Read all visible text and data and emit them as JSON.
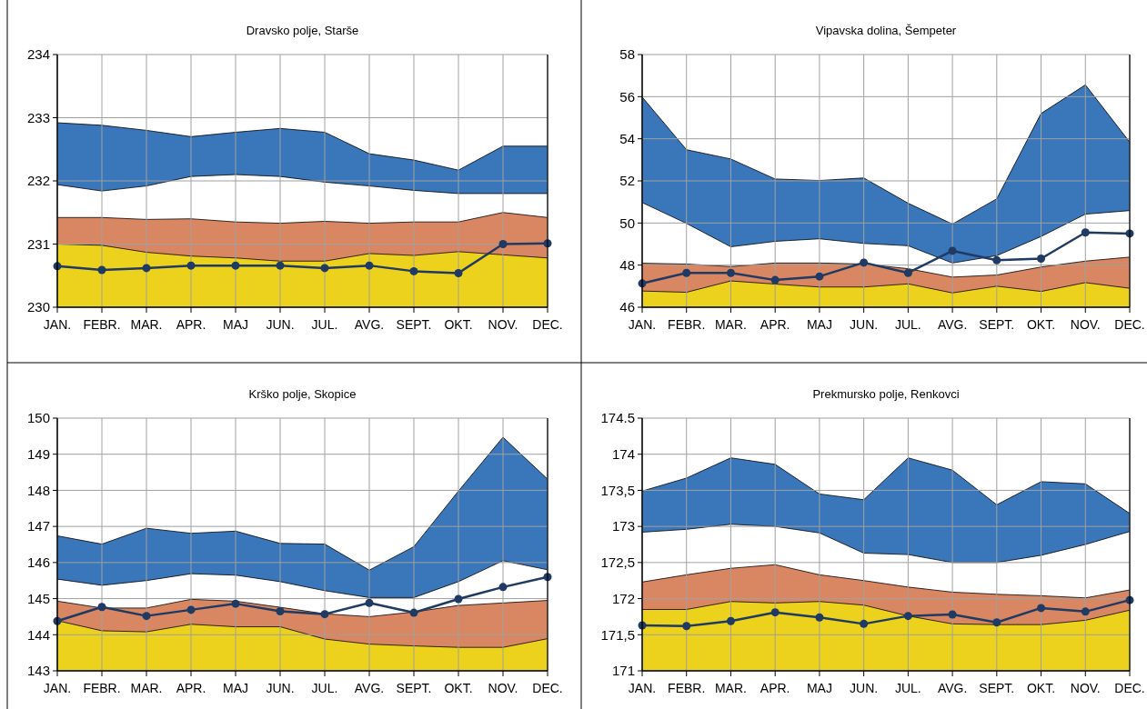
{
  "chart_data": [
    {
      "type": "area",
      "title": "Dravsko polje, Starše",
      "categories": [
        "JAN.",
        "FEBR.",
        "MAR.",
        "APR.",
        "MAJ",
        "JUN.",
        "JUL.",
        "AVG.",
        "SEPT.",
        "OKT.",
        "NOV.",
        "DEC."
      ],
      "ylim": [
        230,
        234
      ],
      "yticks": [
        230,
        231,
        232,
        233,
        234
      ],
      "grid": true,
      "series": [
        {
          "type": "area",
          "color": "#3a76ba",
          "values": [
            232.92,
            232.88,
            232.8,
            232.7,
            232.77,
            232.83,
            232.77,
            232.43,
            232.33,
            232.17,
            232.55,
            232.55
          ]
        },
        {
          "type": "area",
          "color": "#ffffff",
          "values": [
            231.94,
            231.84,
            231.92,
            232.07,
            232.1,
            232.07,
            231.98,
            231.92,
            231.85,
            231.8,
            231.8,
            231.8
          ]
        },
        {
          "type": "area",
          "color": "#d98763",
          "values": [
            231.42,
            231.42,
            231.39,
            231.4,
            231.35,
            231.33,
            231.36,
            231.33,
            231.35,
            231.35,
            231.5,
            231.42
          ]
        },
        {
          "type": "area",
          "color": "#ecd21c",
          "values": [
            231.0,
            230.98,
            230.87,
            230.81,
            230.78,
            230.73,
            230.73,
            230.85,
            230.82,
            230.88,
            230.83,
            230.78
          ]
        },
        {
          "type": "line",
          "marker": "circle",
          "color": "#1f3a63",
          "values": [
            230.65,
            230.59,
            230.62,
            230.66,
            230.66,
            230.66,
            230.62,
            230.66,
            230.57,
            230.54,
            231.0,
            231.01
          ]
        }
      ]
    },
    {
      "type": "area",
      "title": "Vipavska dolina, Šempeter",
      "categories": [
        "JAN.",
        "FEBR.",
        "MAR.",
        "APR.",
        "MAJ",
        "JUN.",
        "JUL.",
        "AVG.",
        "SEPT.",
        "OKT.",
        "NOV.",
        "DEC."
      ],
      "ylim": [
        46,
        58
      ],
      "yticks": [
        46,
        48,
        50,
        52,
        54,
        56,
        58
      ],
      "grid": true,
      "series": [
        {
          "type": "area",
          "color": "#3a76ba",
          "values": [
            55.98,
            53.48,
            53.04,
            52.09,
            52.02,
            52.14,
            50.94,
            49.95,
            51.15,
            55.2,
            56.56,
            53.84
          ]
        },
        {
          "type": "area",
          "color": "#ffffff",
          "values": [
            50.97,
            49.98,
            48.87,
            49.13,
            49.25,
            49.03,
            48.92,
            48.1,
            48.45,
            49.36,
            50.42,
            50.59
          ]
        },
        {
          "type": "area",
          "color": "#d98763",
          "values": [
            48.09,
            48.05,
            47.93,
            48.1,
            48.1,
            48.05,
            47.83,
            47.43,
            47.53,
            47.91,
            48.19,
            48.38
          ]
        },
        {
          "type": "area",
          "color": "#ecd21c",
          "values": [
            46.77,
            46.71,
            47.25,
            47.1,
            46.96,
            46.96,
            47.11,
            46.68,
            47.0,
            46.75,
            47.17,
            46.9
          ]
        },
        {
          "type": "line",
          "marker": "circle",
          "color": "#1f3a63",
          "values": [
            47.13,
            47.63,
            47.63,
            47.29,
            47.46,
            48.12,
            47.63,
            48.68,
            48.23,
            48.31,
            49.55,
            49.5
          ]
        }
      ]
    },
    {
      "type": "area",
      "title": "Krško polje, Skopice",
      "categories": [
        "JAN.",
        "FEBR.",
        "MAR.",
        "APR.",
        "MAJ",
        "JUN.",
        "JUL.",
        "AVG.",
        "SEPT.",
        "OKT.",
        "NOV.",
        "DEC."
      ],
      "ylim": [
        143,
        150
      ],
      "yticks": [
        143,
        144,
        145,
        146,
        147,
        148,
        149,
        150
      ],
      "grid": true,
      "series": [
        {
          "type": "area",
          "color": "#3a76ba",
          "values": [
            146.74,
            146.51,
            146.95,
            146.81,
            146.87,
            146.53,
            146.51,
            145.79,
            146.44,
            147.98,
            149.47,
            148.31
          ]
        },
        {
          "type": "area",
          "color": "#ffffff",
          "values": [
            145.54,
            145.37,
            145.5,
            145.69,
            145.65,
            145.47,
            145.22,
            145.03,
            145.03,
            145.47,
            146.05,
            145.8
          ]
        },
        {
          "type": "area",
          "color": "#d98763",
          "values": [
            144.93,
            144.74,
            144.74,
            144.98,
            144.93,
            144.76,
            144.58,
            144.5,
            144.63,
            144.81,
            144.88,
            144.95
          ]
        },
        {
          "type": "area",
          "color": "#ecd21c",
          "values": [
            144.39,
            144.11,
            144.08,
            144.29,
            144.22,
            144.22,
            143.88,
            143.74,
            143.69,
            143.65,
            143.65,
            143.89
          ]
        },
        {
          "type": "line",
          "marker": "circle",
          "color": "#1f3a63",
          "values": [
            144.38,
            144.77,
            144.52,
            144.69,
            144.86,
            144.65,
            144.57,
            144.88,
            144.61,
            144.99,
            145.32,
            145.6
          ]
        }
      ]
    },
    {
      "type": "area",
      "title": "Prekmursko polje, Renkovci",
      "categories": [
        "JAN.",
        "FEBR.",
        "MAR.",
        "APR.",
        "MAJ",
        "JUN.",
        "JUL.",
        "AVG.",
        "SEPT.",
        "OKT.",
        "NOV.",
        "DEC."
      ],
      "ylim": [
        171,
        174.5
      ],
      "yticks": [
        171,
        {
          "value": 171.5,
          "label": "171,5"
        },
        172,
        {
          "value": 172.5,
          "label": "172,5"
        },
        173,
        {
          "value": 173.5,
          "label": "173,5"
        },
        174,
        174.5
      ],
      "grid": true,
      "series": [
        {
          "type": "area",
          "color": "#3a76ba",
          "values": [
            173.49,
            173.67,
            173.95,
            173.86,
            173.45,
            173.37,
            173.95,
            173.78,
            173.3,
            173.62,
            173.59,
            173.18
          ]
        },
        {
          "type": "area",
          "color": "#ffffff",
          "values": [
            172.92,
            172.96,
            173.03,
            173.0,
            172.91,
            172.63,
            172.61,
            172.5,
            172.5,
            172.6,
            172.75,
            172.93
          ]
        },
        {
          "type": "area",
          "color": "#d98763",
          "values": [
            172.23,
            172.33,
            172.42,
            172.47,
            172.33,
            172.25,
            172.16,
            172.09,
            172.06,
            172.04,
            172.01,
            172.12
          ]
        },
        {
          "type": "area",
          "color": "#ecd21c",
          "values": [
            171.85,
            171.85,
            171.96,
            171.94,
            171.96,
            171.91,
            171.76,
            171.65,
            171.64,
            171.64,
            171.7,
            171.84
          ]
        },
        {
          "type": "line",
          "marker": "circle",
          "color": "#1f3a63",
          "values": [
            171.63,
            171.62,
            171.69,
            171.81,
            171.74,
            171.65,
            171.76,
            171.78,
            171.67,
            171.87,
            171.82,
            171.98
          ]
        }
      ]
    }
  ]
}
